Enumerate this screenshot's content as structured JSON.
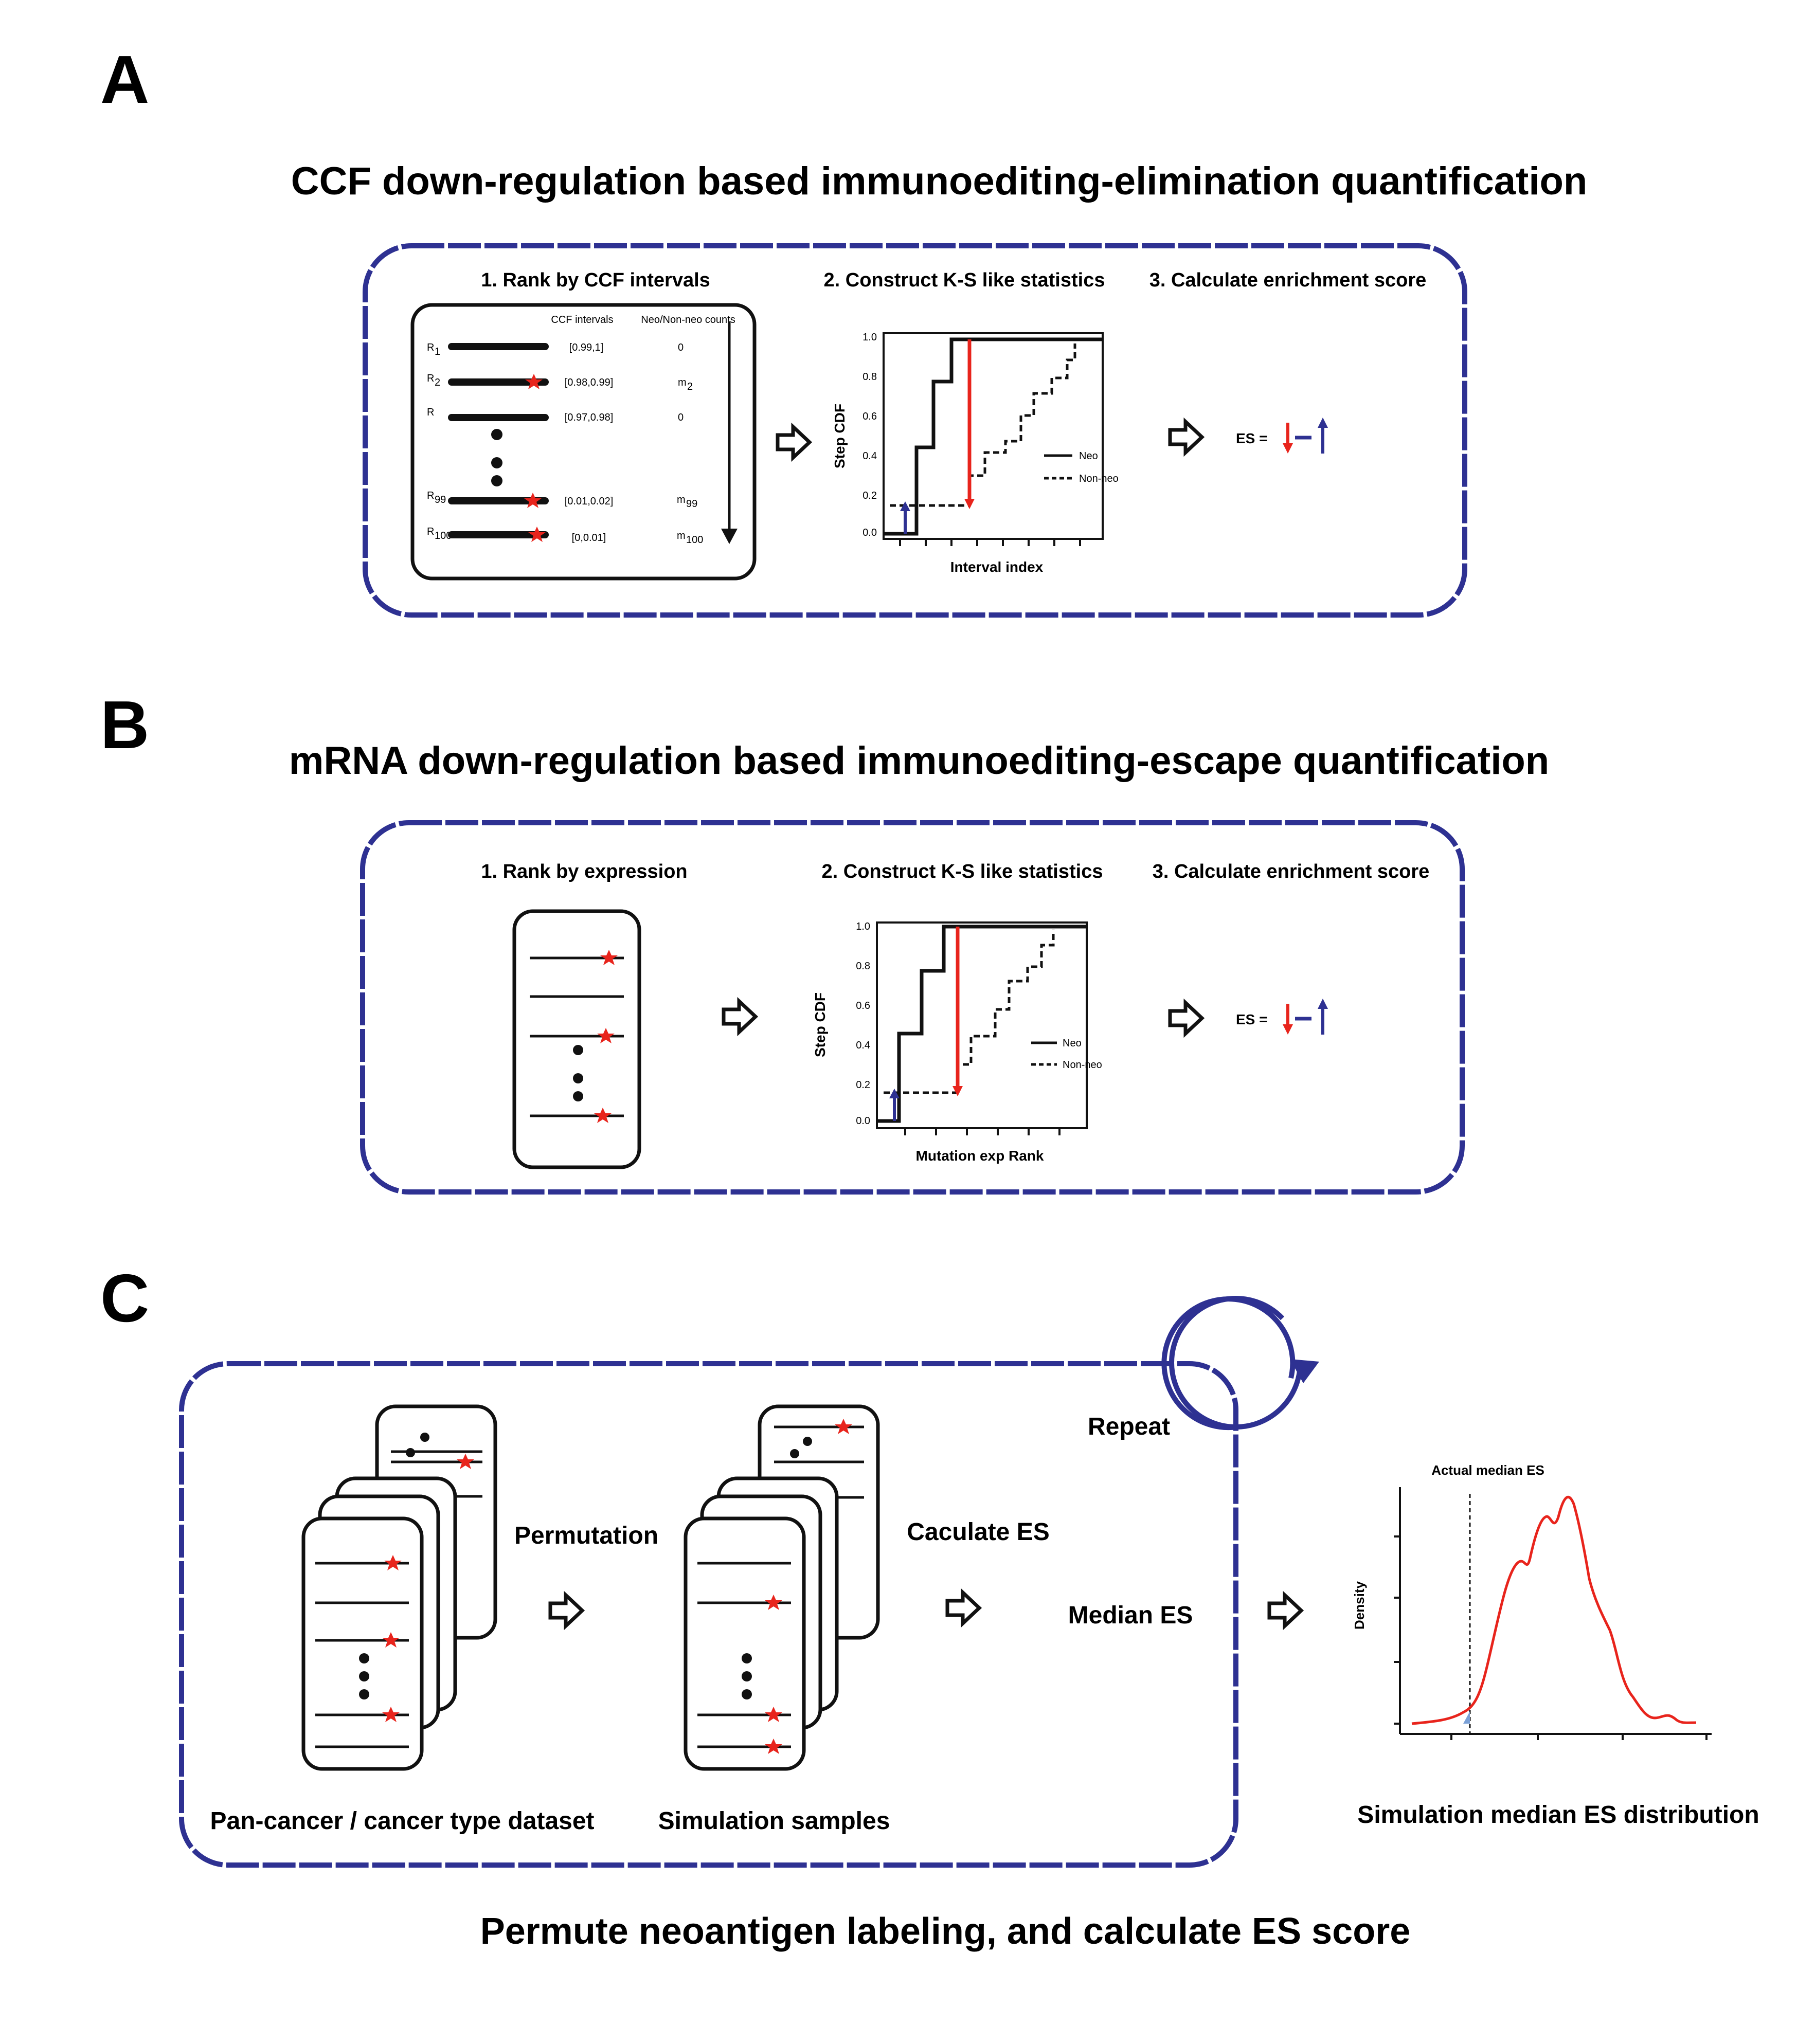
{
  "panels": {
    "a": {
      "letter": "A",
      "title": "CCF down-regulation based immunoediting-elimination quantification",
      "steps": [
        "1. Rank by CCF intervals",
        "2. Construct K-S like statistics",
        "3. Calculate enrichment score"
      ],
      "table_headers": [
        "CCF intervals",
        "Neo/Non-neo counts"
      ],
      "rows": [
        {
          "label": "R",
          "sub": "1",
          "interval": "[0.99,1]",
          "count": "0",
          "count_sub": ""
        },
        {
          "label": "R",
          "sub": "2",
          "interval": "[0.98,0.99]",
          "count": "m",
          "count_sub": "2"
        },
        {
          "label": "R",
          "sub": "",
          "interval": "[0.97,0.98]",
          "count": "0",
          "count_sub": ""
        },
        {
          "label": "R",
          "sub": "99",
          "interval": "[0.01,0.02]",
          "count": "m",
          "count_sub": "99"
        },
        {
          "label": "R",
          "sub": "100",
          "interval": "[0,0.01]",
          "count": "m",
          "count_sub": "100"
        }
      ],
      "yaxis_label": "Step CDF",
      "xaxis_label": "Interval index",
      "yticks": [
        "0.0",
        "0.2",
        "0.4",
        "0.6",
        "0.8",
        "1.0"
      ],
      "legend": [
        "Neo",
        "Non-neo"
      ],
      "es_label": "ES ="
    },
    "b": {
      "letter": "B",
      "title": "mRNA down-regulation based immunoediting-escape quantification",
      "steps": [
        "1. Rank by expression",
        "2. Construct K-S like statistics",
        "3. Calculate enrichment score"
      ],
      "yaxis_label": "Step CDF",
      "xaxis_label": "Mutation exp Rank",
      "yticks": [
        "0.0",
        "0.2",
        "0.4",
        "0.6",
        "0.8",
        "1.0"
      ],
      "legend": [
        "Neo",
        "Non-neo"
      ],
      "es_label": "ES ="
    },
    "c": {
      "letter": "C",
      "repeat": "Repeat",
      "permutation": "Permutation",
      "calculate_es": "Caculate ES",
      "median_es": "Median ES",
      "dataset_label": "Pan-cancer / cancer type dataset",
      "simulation_label": "Simulation samples",
      "density_caption": "Simulation median ES distribution",
      "actual_label": "Actual median ES",
      "density_ylabel": "Density",
      "footer": "Permute neoantigen labeling, and calculate ES score"
    }
  },
  "colors": {
    "frame": "#2e3192",
    "neo_line": "#e8241c",
    "down_arrow": "#e8241c",
    "up_arrow": "#2e3192",
    "star": "#e8241c"
  }
}
